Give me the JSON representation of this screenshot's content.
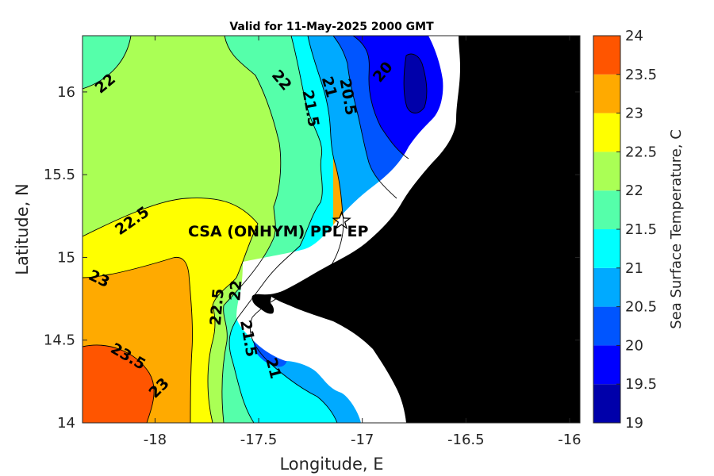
{
  "chart_data": {
    "type": "heatmap",
    "title": "Valid for 11-May-2025 2000 GMT",
    "xlabel": "Longitude, E",
    "ylabel": "Latitude, N",
    "xlim": [
      -18.35,
      -15.95
    ],
    "ylim": [
      14.0,
      16.34
    ],
    "x_ticks": [
      {
        "value": -18,
        "label": "-18"
      },
      {
        "value": -17.5,
        "label": "-17.5"
      },
      {
        "value": -17,
        "label": "-17"
      },
      {
        "value": -16.5,
        "label": "-16.5"
      },
      {
        "value": -16,
        "label": "-16"
      }
    ],
    "y_ticks": [
      {
        "value": 14,
        "label": "14"
      },
      {
        "value": 14.5,
        "label": "14.5"
      },
      {
        "value": 15,
        "label": "15"
      },
      {
        "value": 15.5,
        "label": "15.5"
      },
      {
        "value": 16,
        "label": "16"
      }
    ],
    "colorbar": {
      "label": "Sea Surface Temperature, C",
      "levels": [
        {
          "lo": 19.0,
          "hi": 19.5,
          "color": "#0000aa"
        },
        {
          "lo": 19.5,
          "hi": 20.0,
          "color": "#0000ff"
        },
        {
          "lo": 20.0,
          "hi": 20.5,
          "color": "#0055ff"
        },
        {
          "lo": 20.5,
          "hi": 21.0,
          "color": "#00aaff"
        },
        {
          "lo": 21.0,
          "hi": 21.5,
          "color": "#00ffff"
        },
        {
          "lo": 21.5,
          "hi": 22.0,
          "color": "#55ffaa"
        },
        {
          "lo": 22.0,
          "hi": 22.5,
          "color": "#aaff55"
        },
        {
          "lo": 22.5,
          "hi": 23.0,
          "color": "#ffff00"
        },
        {
          "lo": 23.0,
          "hi": 23.5,
          "color": "#ffaa00"
        },
        {
          "lo": 23.5,
          "hi": 24.0,
          "color": "#ff5500"
        }
      ],
      "tick_labels": [
        "19",
        "19.5",
        "20",
        "20.5",
        "21",
        "21.5",
        "22",
        "22.5",
        "23",
        "23.5",
        "24"
      ]
    },
    "contour_labels": [
      {
        "text": "22",
        "lon": -18.24,
        "lat": 16.05,
        "angle": -40
      },
      {
        "text": "22",
        "lon": -17.39,
        "lat": 16.07,
        "angle": 50
      },
      {
        "text": "21",
        "lon": -17.16,
        "lat": 16.03,
        "angle": 75
      },
      {
        "text": "21.5",
        "lon": -17.25,
        "lat": 15.9,
        "angle": 80
      },
      {
        "text": "20.5",
        "lon": -17.07,
        "lat": 15.97,
        "angle": 80
      },
      {
        "text": "20",
        "lon": -16.9,
        "lat": 16.12,
        "angle": -50
      },
      {
        "text": "22.5",
        "lon": -18.11,
        "lat": 15.22,
        "angle": -35
      },
      {
        "text": "23",
        "lon": -18.27,
        "lat": 14.87,
        "angle": 25
      },
      {
        "text": "22.5",
        "lon": -17.7,
        "lat": 14.7,
        "angle": -85
      },
      {
        "text": "22",
        "lon": -17.61,
        "lat": 14.8,
        "angle": -85
      },
      {
        "text": "21.5",
        "lon": -17.55,
        "lat": 14.51,
        "angle": 80
      },
      {
        "text": "21",
        "lon": -17.43,
        "lat": 14.33,
        "angle": 75
      },
      {
        "text": "23.5",
        "lon": -18.13,
        "lat": 14.4,
        "angle": 30
      },
      {
        "text": "23",
        "lon": -17.98,
        "lat": 14.21,
        "angle": -45
      }
    ],
    "station": {
      "lon": -17.1,
      "lat": 15.22,
      "marker": "star"
    },
    "annotation": "CSA (ONHYM) PPL EP",
    "land_color": "#000000",
    "nodata_color": "#ffffff",
    "grid": false
  }
}
